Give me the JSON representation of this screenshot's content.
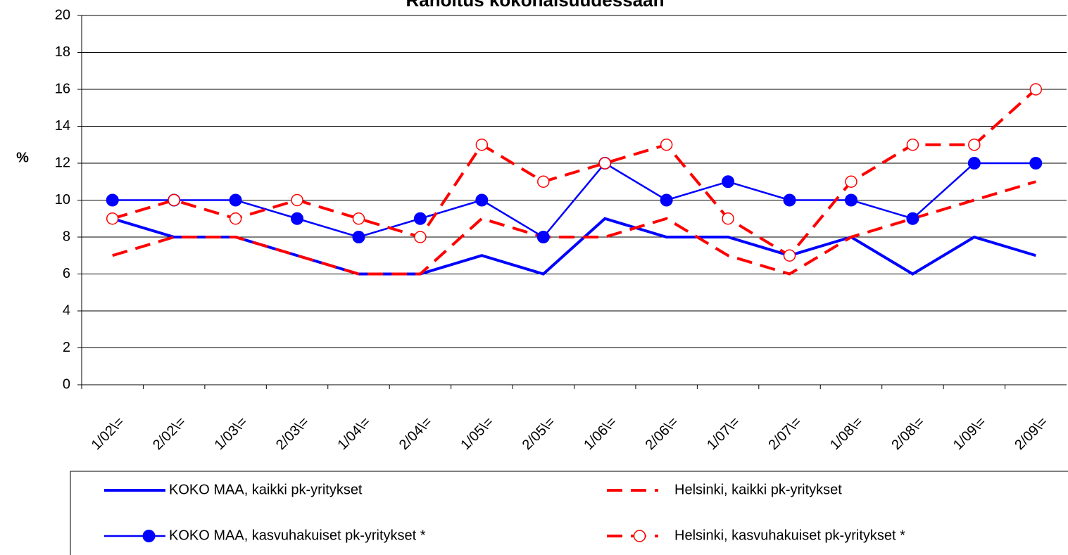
{
  "chart_data": {
    "type": "line",
    "title": "Rahoitus kokonaisuudessaan",
    "y_label": "%",
    "categories": [
      "1/02\\=",
      "2/02\\=",
      "1/03\\=",
      "2/03\\=",
      "1/04\\=",
      "2/04\\=",
      "1/05\\=",
      "2/05\\=",
      "1/06\\=",
      "2/06\\=",
      "1/07\\=",
      "2/07\\=",
      "1/08\\=",
      "2/08\\=",
      "1/09\\=",
      "2/09\\="
    ],
    "series": [
      {
        "name": "KOKO MAA, kaikki pk-yritykset",
        "color": "#0000ff",
        "line_style": "solid",
        "marker": "none",
        "values": [
          9,
          8,
          8,
          7,
          6,
          6,
          7,
          6,
          9,
          8,
          8,
          7,
          8,
          6,
          8,
          7
        ]
      },
      {
        "name": "Helsinki, kaikki pk-yritykset",
        "color": "#ff0000",
        "line_style": "dashed",
        "marker": "none",
        "values": [
          7,
          8,
          8,
          7,
          6,
          6,
          9,
          8,
          8,
          9,
          7,
          6,
          8,
          9,
          10,
          11
        ]
      },
      {
        "name": "KOKO MAA, kasvuhakuiset pk-yritykset *",
        "color": "#0000ff",
        "line_style": "solid",
        "marker": "filled-circle",
        "values": [
          10,
          10,
          10,
          9,
          8,
          9,
          10,
          8,
          12,
          10,
          11,
          10,
          10,
          9,
          12,
          12
        ]
      },
      {
        "name": "Helsinki, kasvuhakuiset pk-yritykset *",
        "color": "#ff0000",
        "line_style": "dashed",
        "marker": "open-circle",
        "values": [
          9,
          10,
          9,
          10,
          9,
          8,
          13,
          11,
          12,
          13,
          9,
          7,
          11,
          13,
          13,
          16
        ]
      }
    ],
    "ylim": [
      0,
      20
    ],
    "yticks": [
      0,
      2,
      4,
      6,
      8,
      10,
      12,
      14,
      16,
      18,
      20
    ],
    "grid": true
  }
}
